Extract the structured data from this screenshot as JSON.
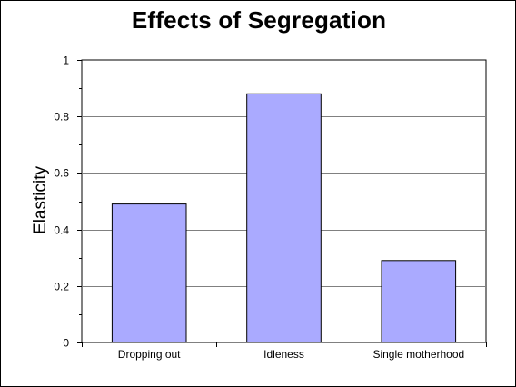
{
  "chart_data": {
    "type": "bar",
    "title": "Effects of Segregation",
    "xlabel": "",
    "ylabel": "Elasticity",
    "categories": [
      "Dropping out",
      "Idleness",
      "Single motherhood"
    ],
    "values": [
      0.49,
      0.88,
      0.29
    ],
    "ylim": [
      0,
      1
    ],
    "yticks": [
      {
        "value": 0,
        "label": "0"
      },
      {
        "value": 0.2,
        "label": "0.2"
      },
      {
        "value": 0.4,
        "label": "0.4"
      },
      {
        "value": 0.6,
        "label": "0.6"
      },
      {
        "value": 0.8,
        "label": "0.8"
      },
      {
        "value": 1,
        "label": "1"
      }
    ],
    "grid": true,
    "legend": "none",
    "colors": {
      "bar": "#aaaaff",
      "bar_edge": "#000000",
      "grid": "#808080",
      "axis": "#000000"
    }
  }
}
